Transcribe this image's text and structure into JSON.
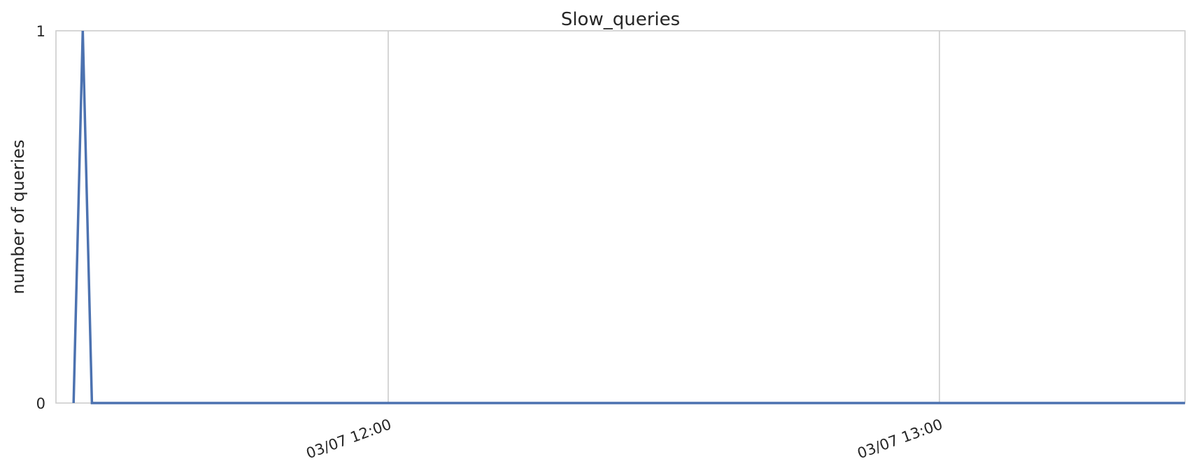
{
  "chart_data": {
    "type": "line",
    "title": "Slow_queries",
    "xlabel": "",
    "ylabel": "number of queries",
    "x_axis": {
      "type": "time",
      "range": [
        "03/07 11:23:50",
        "03/07 13:26:44"
      ],
      "ticks": [
        {
          "time": "03/07 12:00",
          "label": "03/07 12:00"
        },
        {
          "time": "03/07 13:00",
          "label": "03/07 13:00"
        }
      ]
    },
    "y_axis": {
      "range": [
        0,
        1
      ],
      "ticks": [
        {
          "value": 0,
          "label": "0"
        },
        {
          "value": 1,
          "label": "1"
        }
      ]
    },
    "grid": {
      "x": true,
      "y": false
    },
    "legend": "none",
    "series": [
      {
        "color": "#4c72b0",
        "points": [
          {
            "x": "03/07 11:25:45",
            "y": 0
          },
          {
            "x": "03/07 11:26:45",
            "y": 1
          },
          {
            "x": "03/07 11:27:45",
            "y": 0
          },
          {
            "x": "03/07 13:26:44",
            "y": 0
          }
        ]
      }
    ]
  }
}
